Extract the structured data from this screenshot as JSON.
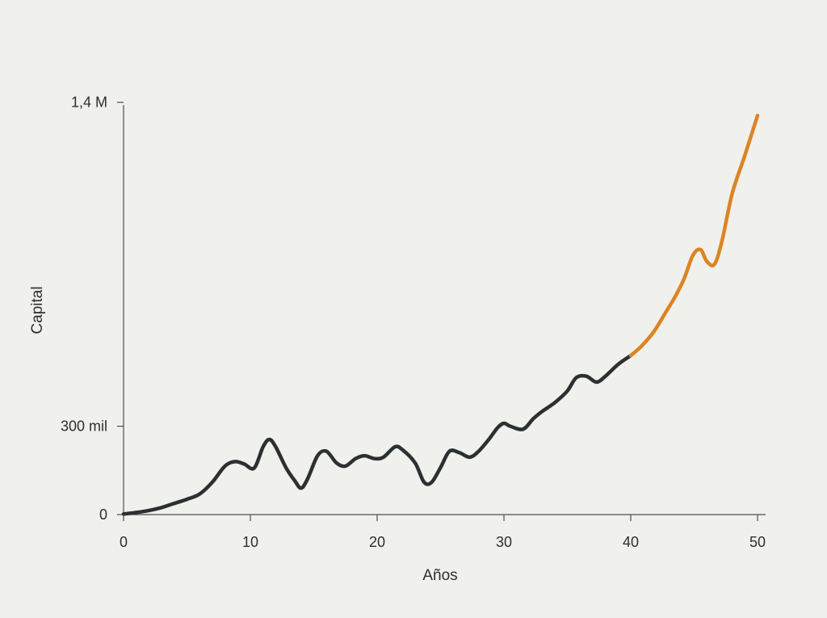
{
  "chart_data": {
    "type": "line",
    "title": "",
    "xlabel": "Años",
    "ylabel": "Capital",
    "xlim": [
      0,
      50
    ],
    "ylim": [
      0,
      1400000
    ],
    "x_ticks": [
      0,
      10,
      20,
      30,
      40,
      50
    ],
    "y_ticks": [
      {
        "value": 0,
        "label": "0"
      },
      {
        "value": 300000,
        "label": "300 mil"
      },
      {
        "value": 1400000,
        "label": "1,4 M"
      }
    ],
    "grid": false,
    "legend": "none",
    "series": [
      {
        "color": "#2b3032",
        "x": [
          0,
          1,
          2,
          3,
          4,
          5,
          6,
          7,
          8,
          8.8,
          9.5,
          10.3,
          11,
          11.5,
          12,
          12.8,
          13.5,
          14,
          14.5,
          15.3,
          16,
          16.8,
          17.5,
          18.3,
          19,
          19.8,
          20.5,
          21.4,
          22,
          23,
          23.7,
          24.3,
          25,
          25.7,
          26.5,
          27.3,
          28,
          28.8,
          29.5,
          30,
          30.5,
          31.5,
          32.3,
          33,
          34,
          35,
          35.7,
          36.5,
          37.3,
          38,
          39,
          40
        ],
        "y": [
          2000,
          7000,
          14000,
          24000,
          38000,
          52000,
          70000,
          110000,
          165000,
          180000,
          172000,
          158000,
          230000,
          255000,
          230000,
          160000,
          115000,
          90000,
          120000,
          200000,
          215000,
          175000,
          165000,
          190000,
          200000,
          190000,
          195000,
          230000,
          220000,
          175000,
          110000,
          110000,
          160000,
          215000,
          210000,
          195000,
          215000,
          255000,
          295000,
          310000,
          300000,
          290000,
          325000,
          350000,
          380000,
          420000,
          465000,
          470000,
          450000,
          470000,
          510000,
          540000
        ]
      },
      {
        "color": "#dc8423",
        "x": [
          40,
          40.8,
          41.8,
          42.8,
          43.5,
          44.2,
          44.9,
          45.5,
          46,
          46.6,
          47.2,
          48,
          49,
          50
        ],
        "y": [
          540000,
          570000,
          620000,
          690000,
          740000,
          800000,
          880000,
          900000,
          860000,
          850000,
          930000,
          1090000,
          1220000,
          1355000
        ]
      }
    ]
  }
}
